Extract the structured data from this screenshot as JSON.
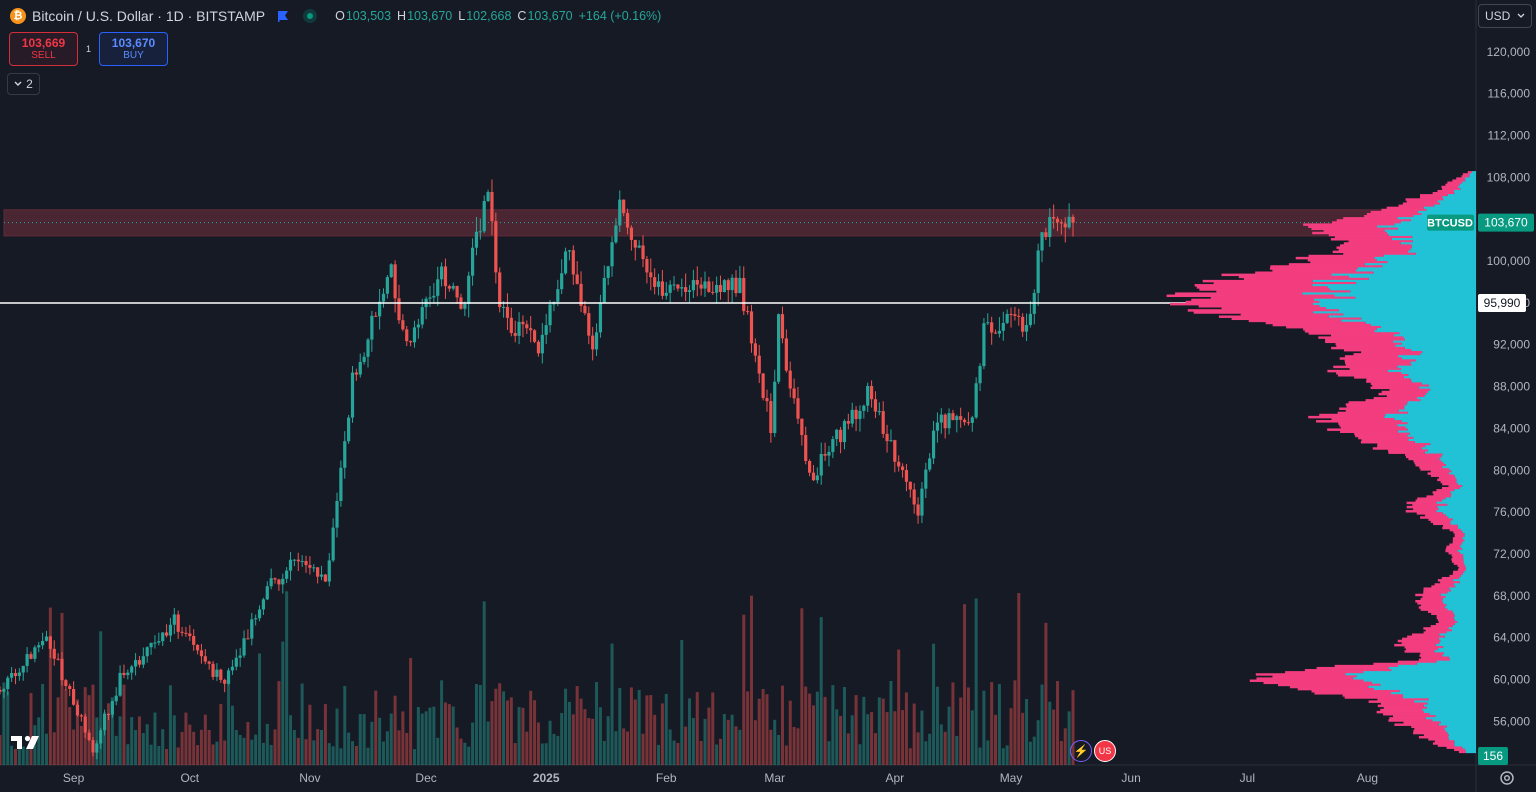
{
  "header": {
    "symbol_icon": "bitcoin-icon",
    "title": "Bitcoin / U.S. Dollar · 1D · BITSTAMP",
    "ohlc": [
      {
        "key": "O",
        "value": "103,503"
      },
      {
        "key": "H",
        "value": "103,670"
      },
      {
        "key": "L",
        "value": "102,668"
      },
      {
        "key": "C",
        "value": "103,670"
      }
    ],
    "change": "+164 (+0.16%)"
  },
  "trade": {
    "sell_price": "103,669",
    "sell_label": "SELL",
    "buy_price": "103,670",
    "buy_label": "BUY",
    "spread": "1"
  },
  "indicators_toggle": "2",
  "currency": "USD",
  "colors": {
    "background": "#161a25",
    "up": "#26a69a",
    "down": "#ef5350",
    "volume_profile_up": "#22c2d6",
    "volume_profile_down": "#f23d7f",
    "zone": "#5a2a35"
  },
  "chart_data": {
    "type": "candlestick",
    "symbol": "BTCUSD",
    "interval": "1D",
    "ylim": [
      52000,
      124000
    ],
    "y_ticks": [
      "120,000",
      "116,000",
      "112,000",
      "108,000",
      "104,000",
      "100,000",
      "96,000",
      "92,000",
      "88,000",
      "84,000",
      "80,000",
      "76,000",
      "72,000",
      "68,000",
      "64,000",
      "60,000",
      "56,000"
    ],
    "x_ticks": [
      "Sep",
      "Oct",
      "Nov",
      "Dec",
      "2025",
      "Feb",
      "Mar",
      "Apr",
      "May",
      "Jun",
      "Jul",
      "Aug"
    ],
    "x_range": [
      "2024-08-13",
      "2025-08-28"
    ],
    "price_anchors": [
      [
        "2024-08-13",
        59000
      ],
      [
        "2024-08-25",
        64000
      ],
      [
        "2024-09-06",
        53500
      ],
      [
        "2024-09-13",
        60000
      ],
      [
        "2024-09-27",
        65500
      ],
      [
        "2024-10-10",
        59500
      ],
      [
        "2024-10-21",
        68500
      ],
      [
        "2024-10-29",
        72000
      ],
      [
        "2024-11-05",
        69000
      ],
      [
        "2024-11-12",
        88500
      ],
      [
        "2024-11-22",
        99000
      ],
      [
        "2024-11-26",
        91500
      ],
      [
        "2024-12-05",
        99000
      ],
      [
        "2024-12-10",
        95000
      ],
      [
        "2024-12-17",
        107500
      ],
      [
        "2024-12-20",
        95000
      ],
      [
        "2024-12-30",
        92000
      ],
      [
        "2025-01-07",
        101500
      ],
      [
        "2025-01-13",
        91000
      ],
      [
        "2025-01-20",
        106500
      ],
      [
        "2025-01-27",
        98000
      ],
      [
        "2025-02-03",
        97500
      ],
      [
        "2025-02-20",
        98000
      ],
      [
        "2025-02-28",
        84000
      ],
      [
        "2025-03-02",
        94000
      ],
      [
        "2025-03-10",
        79000
      ],
      [
        "2025-03-25",
        87500
      ],
      [
        "2025-04-07",
        76500
      ],
      [
        "2025-04-12",
        84500
      ],
      [
        "2025-04-21",
        85000
      ],
      [
        "2025-04-24",
        93500
      ],
      [
        "2025-05-01",
        94500
      ],
      [
        "2025-05-06",
        94000
      ],
      [
        "2025-05-09",
        103000
      ],
      [
        "2025-05-17",
        103670
      ]
    ],
    "candle_count": 278,
    "last_close": 103670,
    "last_price_label": "103,670",
    "symbol_label": "BTCUSD",
    "horizontal_line": {
      "price": 95990,
      "label": "95,990"
    },
    "zone": {
      "top": 104900,
      "bottom": 102400
    },
    "volume_profile_label": "156",
    "volume_profile_anchors": [
      [
        108500,
        0.03
      ],
      [
        107000,
        0.12
      ],
      [
        104500,
        0.35
      ],
      [
        103500,
        0.55
      ],
      [
        101000,
        0.45
      ],
      [
        99000,
        0.78
      ],
      [
        96500,
        1.0
      ],
      [
        95000,
        0.9
      ],
      [
        93000,
        0.55
      ],
      [
        91000,
        0.42
      ],
      [
        89500,
        0.48
      ],
      [
        87500,
        0.3
      ],
      [
        85000,
        0.55
      ],
      [
        83000,
        0.42
      ],
      [
        81000,
        0.22
      ],
      [
        78500,
        0.1
      ],
      [
        76500,
        0.25
      ],
      [
        74000,
        0.07
      ],
      [
        72500,
        0.1
      ],
      [
        70500,
        0.06
      ],
      [
        68500,
        0.18
      ],
      [
        67500,
        0.22
      ],
      [
        65500,
        0.12
      ],
      [
        63500,
        0.28
      ],
      [
        62000,
        0.18
      ],
      [
        60500,
        0.75
      ],
      [
        59500,
        0.72
      ],
      [
        58000,
        0.35
      ],
      [
        56000,
        0.28
      ],
      [
        54000,
        0.15
      ],
      [
        53000,
        0.05
      ]
    ]
  },
  "branding": {
    "logo": "tradingview-logo-icon"
  },
  "toolbar_icons": [
    "lightning-icon",
    "us-flag-icon",
    "settings-gear-icon"
  ]
}
